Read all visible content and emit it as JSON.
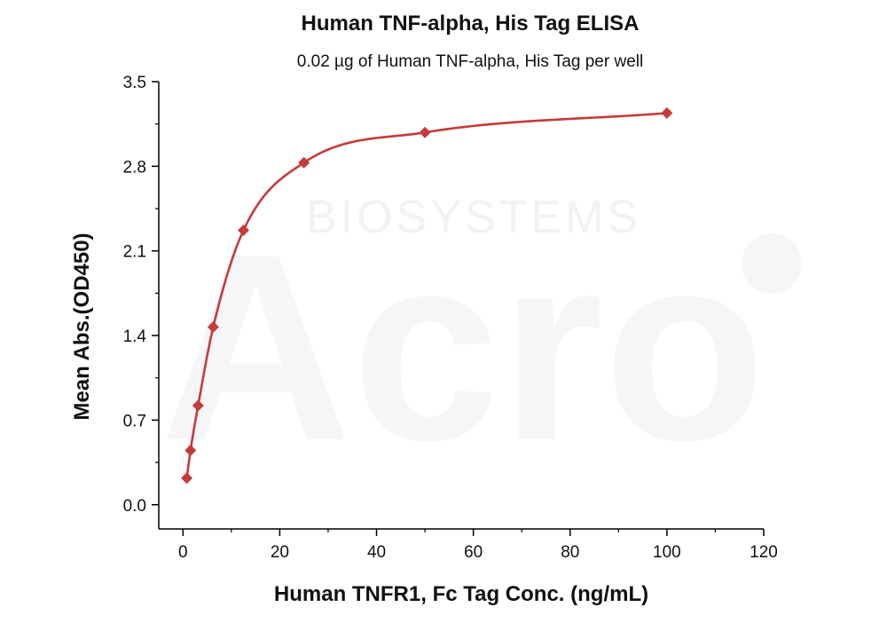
{
  "chart_data": {
    "type": "scatter",
    "title": "Human TNF-alpha, His Tag ELISA",
    "subtitle": "0.02 µg of Human TNF-alpha, His Tag per well",
    "xlabel": "Human TNFR1, Fc Tag Conc. (ng/mL)",
    "ylabel": "Mean Abs.(OD450)",
    "xlim": [
      -5,
      120
    ],
    "ylim": [
      -0.2,
      3.5
    ],
    "xticks": [
      0,
      20,
      40,
      60,
      80,
      100,
      120
    ],
    "yticks": [
      0.0,
      0.7,
      1.4,
      2.1,
      2.8,
      3.5
    ],
    "ytick_labels": [
      "0.0",
      "0.7",
      "1.4",
      "2.1",
      "2.8",
      "3.5"
    ],
    "grid": false,
    "series": [
      {
        "color": "#c53a3a",
        "marker": "diamond",
        "fit_line": true,
        "x": [
          0.78,
          1.56,
          3.13,
          6.25,
          12.5,
          25,
          50,
          100
        ],
        "y": [
          0.22,
          0.45,
          0.82,
          1.47,
          2.27,
          2.83,
          3.08,
          3.24
        ]
      }
    ],
    "watermark": "BIOSYSTEMS",
    "watermark_logo": "Acro"
  }
}
